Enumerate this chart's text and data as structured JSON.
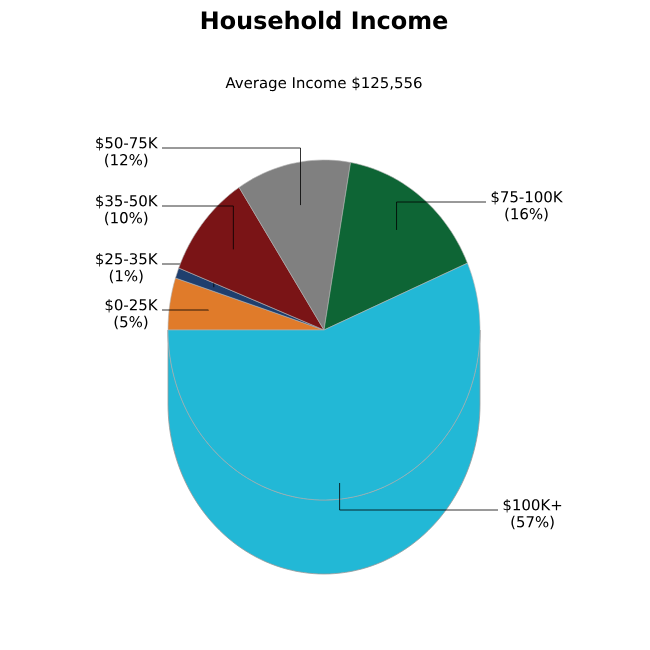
{
  "chart_data": {
    "type": "pie",
    "title": "Household Income",
    "subtitle": "Average Income  $125,556",
    "categories": [
      "$0-25K",
      "$25-35K",
      "$35-50K",
      "$50-75K",
      "$75-100K",
      "$100K+"
    ],
    "values": [
      5,
      1,
      10,
      12,
      16,
      57
    ],
    "value_labels": [
      "(5%)",
      "(1%)",
      "(10%)",
      "(12%)",
      "(16%)",
      "(57%)"
    ],
    "colors": [
      "#e07b2a",
      "#1f3f6e",
      "#7a1416",
      "#808080",
      "#0e6535",
      "#22b8d6"
    ]
  }
}
